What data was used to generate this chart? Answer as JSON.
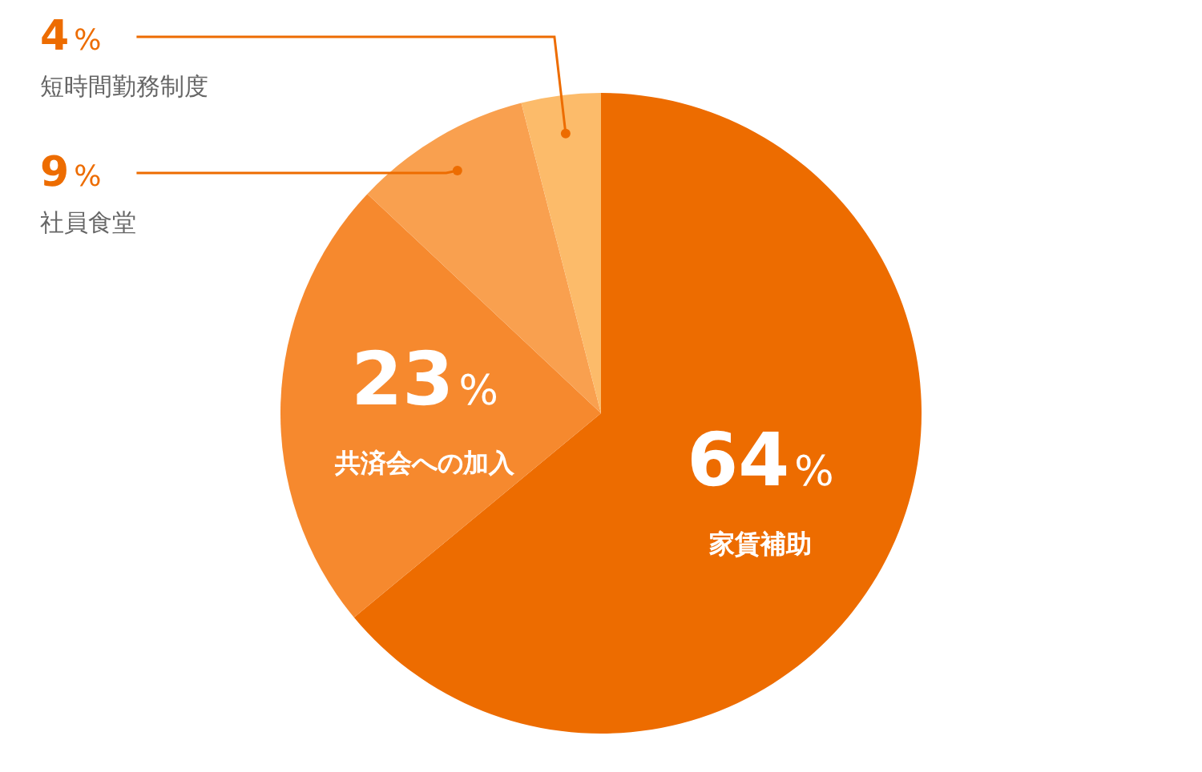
{
  "chart_data": {
    "type": "pie",
    "categories": [
      "家賃補助",
      "共済会への加入",
      "社員食堂",
      "短時間勤務制度"
    ],
    "values": [
      64,
      23,
      9,
      4
    ],
    "value_labels": [
      "64%",
      "23%",
      "9%",
      "4%"
    ],
    "colors": [
      "#ed6c00",
      "#f6892e",
      "#f9a04f",
      "#fcbb6a"
    ]
  }
}
